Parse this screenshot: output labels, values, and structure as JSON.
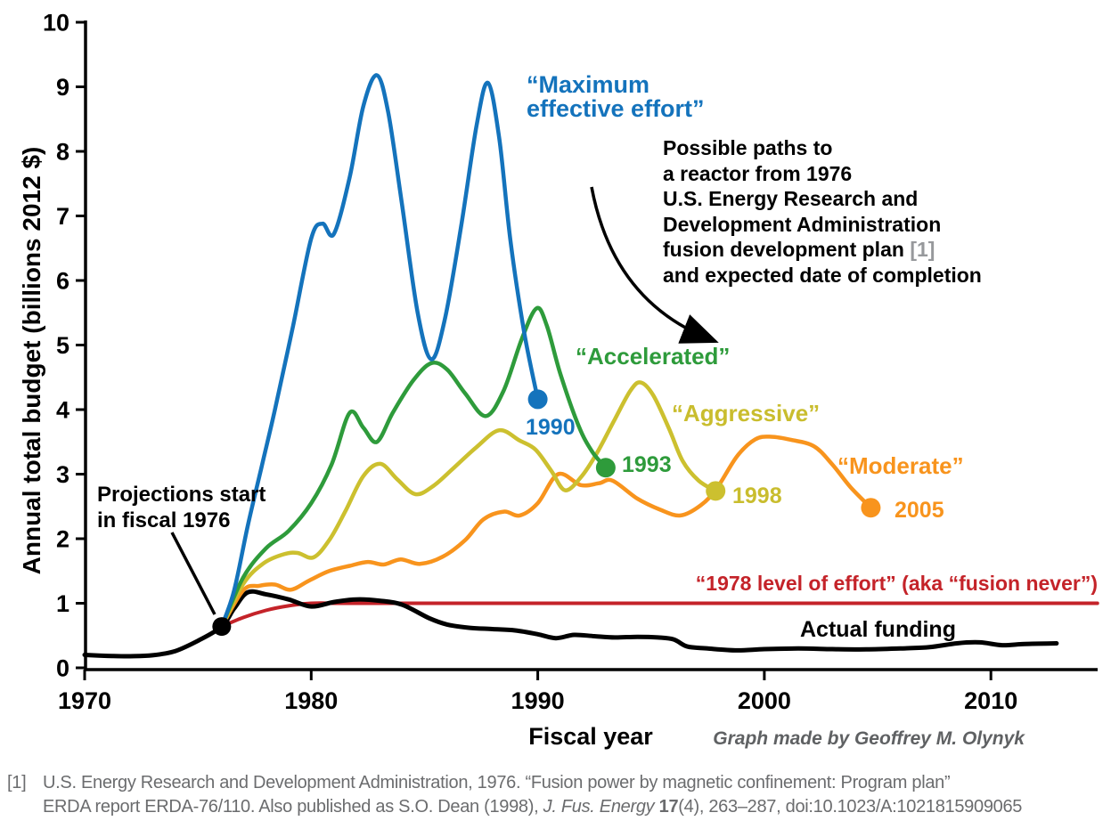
{
  "chart_data": {
    "type": "line",
    "xlabel": "Fiscal year",
    "ylabel": "Annual total budget (billions 2012 $)",
    "xlim": [
      1970,
      2014.7
    ],
    "ylim": [
      0,
      10
    ],
    "x_ticks": [
      1970,
      1980,
      1990,
      2000,
      2010
    ],
    "y_ticks": [
      0,
      1,
      2,
      3,
      4,
      5,
      6,
      7,
      8,
      9,
      10
    ],
    "grid": false,
    "legend_position": "inline-labels",
    "start_dot": {
      "year": 1976.05,
      "value": 0.64,
      "color": "#000000",
      "label": "Projections start in fiscal 1976"
    },
    "series": [
      {
        "id": "fusion-never",
        "name": "“1978 level of effort” (aka “fusion never”)",
        "color": "#C42329",
        "width": 4,
        "end_dot": false,
        "points": [
          [
            1976.05,
            0.64
          ],
          [
            1977,
            0.78
          ],
          [
            1978,
            0.89
          ],
          [
            1979,
            0.96
          ],
          [
            1980,
            1.0
          ],
          [
            1982,
            1.0
          ],
          [
            1990,
            1.0
          ],
          [
            2000,
            1.0
          ],
          [
            2014.7,
            1.0
          ]
        ]
      },
      {
        "id": "actual-funding",
        "name": "Actual funding",
        "color": "#000000",
        "width": 5,
        "end_dot": false,
        "points": [
          [
            1970,
            0.2
          ],
          [
            1971,
            0.185
          ],
          [
            1972,
            0.18
          ],
          [
            1973,
            0.195
          ],
          [
            1974,
            0.26
          ],
          [
            1975,
            0.42
          ],
          [
            1976.05,
            0.64
          ],
          [
            1976.6,
            0.92
          ],
          [
            1977.2,
            1.17
          ],
          [
            1978,
            1.14
          ],
          [
            1979,
            1.06
          ],
          [
            1980,
            0.95
          ],
          [
            1981,
            1.02
          ],
          [
            1982,
            1.06
          ],
          [
            1983,
            1.04
          ],
          [
            1984,
            0.98
          ],
          [
            1985.2,
            0.77
          ],
          [
            1986,
            0.67
          ],
          [
            1987,
            0.62
          ],
          [
            1988,
            0.6
          ],
          [
            1989,
            0.58
          ],
          [
            1990,
            0.52
          ],
          [
            1990.8,
            0.46
          ],
          [
            1991.6,
            0.51
          ],
          [
            1992.5,
            0.49
          ],
          [
            1993.4,
            0.47
          ],
          [
            1994.4,
            0.48
          ],
          [
            1995.3,
            0.47
          ],
          [
            1996,
            0.44
          ],
          [
            1996.6,
            0.33
          ],
          [
            1997.5,
            0.3
          ],
          [
            1998.8,
            0.27
          ],
          [
            2000,
            0.29
          ],
          [
            2001.5,
            0.3
          ],
          [
            2003,
            0.29
          ],
          [
            2004.5,
            0.285
          ],
          [
            2006,
            0.3
          ],
          [
            2007.3,
            0.32
          ],
          [
            2008.5,
            0.38
          ],
          [
            2009.5,
            0.395
          ],
          [
            2010.5,
            0.35
          ],
          [
            2011.5,
            0.37
          ],
          [
            2012.9,
            0.38
          ]
        ]
      },
      {
        "id": "moderate",
        "name": "“Moderate”",
        "completion_year": "2005",
        "color": "#F8941D",
        "width": 4.5,
        "end_dot": true,
        "points": [
          [
            1976.05,
            0.64
          ],
          [
            1977,
            1.2
          ],
          [
            1977.7,
            1.27
          ],
          [
            1978.4,
            1.29
          ],
          [
            1979.1,
            1.21
          ],
          [
            1979.9,
            1.35
          ],
          [
            1980.8,
            1.5
          ],
          [
            1981.7,
            1.58
          ],
          [
            1982.5,
            1.64
          ],
          [
            1983.2,
            1.6
          ],
          [
            1983.95,
            1.68
          ],
          [
            1984.8,
            1.61
          ],
          [
            1985.8,
            1.72
          ],
          [
            1986.8,
            1.98
          ],
          [
            1987.6,
            2.3
          ],
          [
            1988.5,
            2.42
          ],
          [
            1989.2,
            2.36
          ],
          [
            1990,
            2.55
          ],
          [
            1990.9,
            3.0
          ],
          [
            1991.9,
            2.83
          ],
          [
            1992.7,
            2.86
          ],
          [
            1993.3,
            2.9
          ],
          [
            1994.4,
            2.62
          ],
          [
            1995.4,
            2.45
          ],
          [
            1996.3,
            2.36
          ],
          [
            1997.2,
            2.52
          ],
          [
            1997.9,
            2.78
          ],
          [
            1998.8,
            3.28
          ],
          [
            1999.6,
            3.54
          ],
          [
            2000.3,
            3.58
          ],
          [
            2001.2,
            3.53
          ],
          [
            2002.2,
            3.43
          ],
          [
            2003,
            3.15
          ],
          [
            2003.8,
            2.8
          ],
          [
            2004.7,
            2.48
          ]
        ]
      },
      {
        "id": "aggressive",
        "name": "“Aggressive”",
        "completion_year": "1998",
        "color": "#CCC02F",
        "width": 4.5,
        "end_dot": true,
        "points": [
          [
            1976.05,
            0.64
          ],
          [
            1977,
            1.3
          ],
          [
            1977.9,
            1.62
          ],
          [
            1978.8,
            1.76
          ],
          [
            1979.4,
            1.78
          ],
          [
            1980.1,
            1.71
          ],
          [
            1980.8,
            1.98
          ],
          [
            1981.5,
            2.42
          ],
          [
            1982.3,
            2.97
          ],
          [
            1983.05,
            3.16
          ],
          [
            1983.8,
            2.92
          ],
          [
            1984.6,
            2.69
          ],
          [
            1985.4,
            2.82
          ],
          [
            1986.3,
            3.1
          ],
          [
            1987.3,
            3.42
          ],
          [
            1988.3,
            3.68
          ],
          [
            1989.2,
            3.52
          ],
          [
            1989.9,
            3.38
          ],
          [
            1990.6,
            3.05
          ],
          [
            1991.2,
            2.75
          ],
          [
            1991.9,
            2.95
          ],
          [
            1992.6,
            3.32
          ],
          [
            1993.4,
            3.85
          ],
          [
            1994.1,
            4.3
          ],
          [
            1994.55,
            4.42
          ],
          [
            1995.1,
            4.22
          ],
          [
            1995.8,
            3.7
          ],
          [
            1996.4,
            3.2
          ],
          [
            1997.1,
            2.9
          ],
          [
            1997.85,
            2.74
          ]
        ]
      },
      {
        "id": "accelerated",
        "name": "“Accelerated”",
        "completion_year": "1993",
        "color": "#2E9B3B",
        "width": 4.5,
        "end_dot": true,
        "points": [
          [
            1976.05,
            0.64
          ],
          [
            1977,
            1.4
          ],
          [
            1978,
            1.85
          ],
          [
            1979,
            2.12
          ],
          [
            1980,
            2.55
          ],
          [
            1980.9,
            3.15
          ],
          [
            1981.7,
            3.95
          ],
          [
            1982.3,
            3.72
          ],
          [
            1982.9,
            3.5
          ],
          [
            1983.6,
            3.95
          ],
          [
            1984.5,
            4.45
          ],
          [
            1985.3,
            4.72
          ],
          [
            1986,
            4.62
          ],
          [
            1986.8,
            4.25
          ],
          [
            1987.7,
            3.9
          ],
          [
            1988.5,
            4.3
          ],
          [
            1989.3,
            5.1
          ],
          [
            1989.95,
            5.57
          ],
          [
            1990.4,
            5.3
          ],
          [
            1991,
            4.55
          ],
          [
            1991.8,
            3.75
          ],
          [
            1992.4,
            3.35
          ],
          [
            1993,
            3.1
          ]
        ]
      },
      {
        "id": "maximum-effective-effort",
        "name": "“Maximum effective effort”",
        "completion_year": "1990",
        "color": "#1473BC",
        "width": 4.5,
        "end_dot": true,
        "points": [
          [
            1976.05,
            0.64
          ],
          [
            1976.6,
            1.2
          ],
          [
            1977.2,
            2.2
          ],
          [
            1977.8,
            3.1
          ],
          [
            1978.4,
            4.0
          ],
          [
            1979.2,
            5.3
          ],
          [
            1980,
            6.65
          ],
          [
            1980.5,
            6.88
          ],
          [
            1981,
            6.72
          ],
          [
            1981.7,
            7.6
          ],
          [
            1982.3,
            8.7
          ],
          [
            1982.9,
            9.18
          ],
          [
            1983.4,
            8.6
          ],
          [
            1984,
            7.2
          ],
          [
            1984.7,
            5.5
          ],
          [
            1985.3,
            4.78
          ],
          [
            1985.9,
            5.4
          ],
          [
            1986.6,
            6.8
          ],
          [
            1987.3,
            8.4
          ],
          [
            1987.8,
            9.06
          ],
          [
            1988.3,
            8.2
          ],
          [
            1988.8,
            6.6
          ],
          [
            1989.4,
            5.2
          ],
          [
            1990,
            4.16
          ]
        ]
      }
    ]
  },
  "axis": {
    "x_title": "Fiscal year",
    "y_title": "Annual total budget (billions 2012 $)"
  },
  "annotations": {
    "max_effort": "“Maximum\neffective effort”",
    "label_1990": "1990",
    "accelerated": "“Accelerated”",
    "label_1993": "1993",
    "aggressive": "“Aggressive”",
    "label_1998": "1998",
    "moderate": "“Moderate”",
    "label_2005": "2005",
    "red_line": "“1978 level of effort” (aka “fusion never”)",
    "actual_funding": "Actual funding",
    "projections": "Projections start\nin fiscal 1976",
    "note": {
      "lines": [
        "Possible paths to",
        "a reactor from 1976",
        "U.S. Energy Research and",
        "Development Administration"
      ],
      "line5_main": "fusion development plan ",
      "line5_ref": "[1]",
      "line6": "and expected date of completion"
    },
    "credit": "Graph made by Geoffrey M. Olynyk"
  },
  "footer": {
    "ref": "[1]",
    "line1": "U.S. Energy Research and Development Administration, 1976. “Fusion power by magnetic confinement: Program plan”",
    "line2_pre": "ERDA report ERDA-76/110. Also published as S.O. Dean (1998), ",
    "line2_italic": "J. Fus. Energy ",
    "line2_bold": "17",
    "line2_post": "(4), 263–287, doi:10.1023/A:1021815909065"
  },
  "colors": {
    "blue": "#1473BC",
    "green": "#2E9B3B",
    "yellow": "#CCC02F",
    "orange": "#F8941D",
    "red": "#C42329",
    "black": "#000000",
    "footer_gray": "#6B6C6E",
    "ref_gray": "#97999C"
  },
  "arrows": [
    {
      "name": "projections-arrow",
      "from": [
        193,
        598
      ],
      "to": [
        241,
        690
      ],
      "width": 3.5,
      "head": false
    },
    {
      "name": "note-arrow",
      "from": [
        664,
        210
      ],
      "ctrl": [
        688,
        338
      ],
      "to": [
        797,
        381
      ],
      "width": 3.5,
      "head": true
    }
  ]
}
